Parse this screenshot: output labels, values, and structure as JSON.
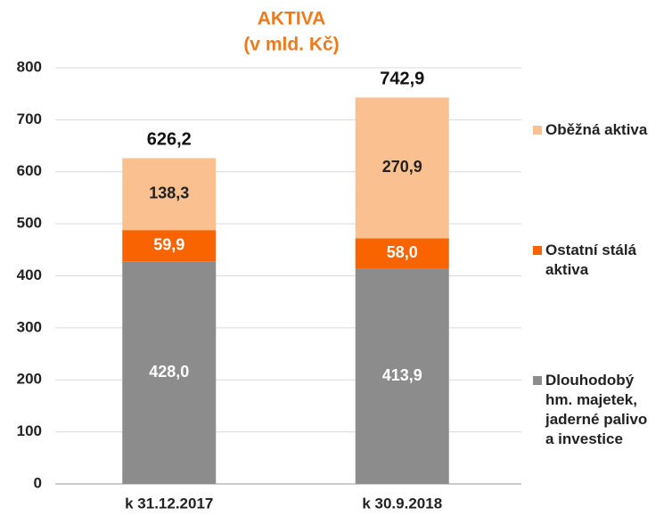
{
  "chart_data": {
    "type": "stacked_bar",
    "title": "AKTIVA",
    "subtitle": "(v mld. Kč)",
    "categories": [
      "k 31.12.2017",
      "k 30.9.2018"
    ],
    "series": [
      {
        "name": "Dlouhodobý hm. majetek, jaderné palivo a investice",
        "color": "#8c8c8c",
        "values": [
          428.0,
          413.9
        ],
        "value_labels": [
          "428,0",
          "413,9"
        ]
      },
      {
        "name": "Ostatní stálá aktiva",
        "color": "#fa6400",
        "values": [
          59.9,
          58.0
        ],
        "value_labels": [
          "59,9",
          "58,0"
        ]
      },
      {
        "name": "Oběžná aktiva",
        "color": "#fac090",
        "values": [
          138.3,
          270.9
        ],
        "value_labels": [
          "138,3",
          "270,9"
        ]
      }
    ],
    "totals": [
      626.2,
      742.9
    ],
    "total_labels": [
      "626,2",
      "742,9"
    ],
    "ylim": [
      0,
      800
    ],
    "yticks": [
      0,
      100,
      200,
      300,
      400,
      500,
      600,
      700,
      800
    ],
    "grid": true
  }
}
